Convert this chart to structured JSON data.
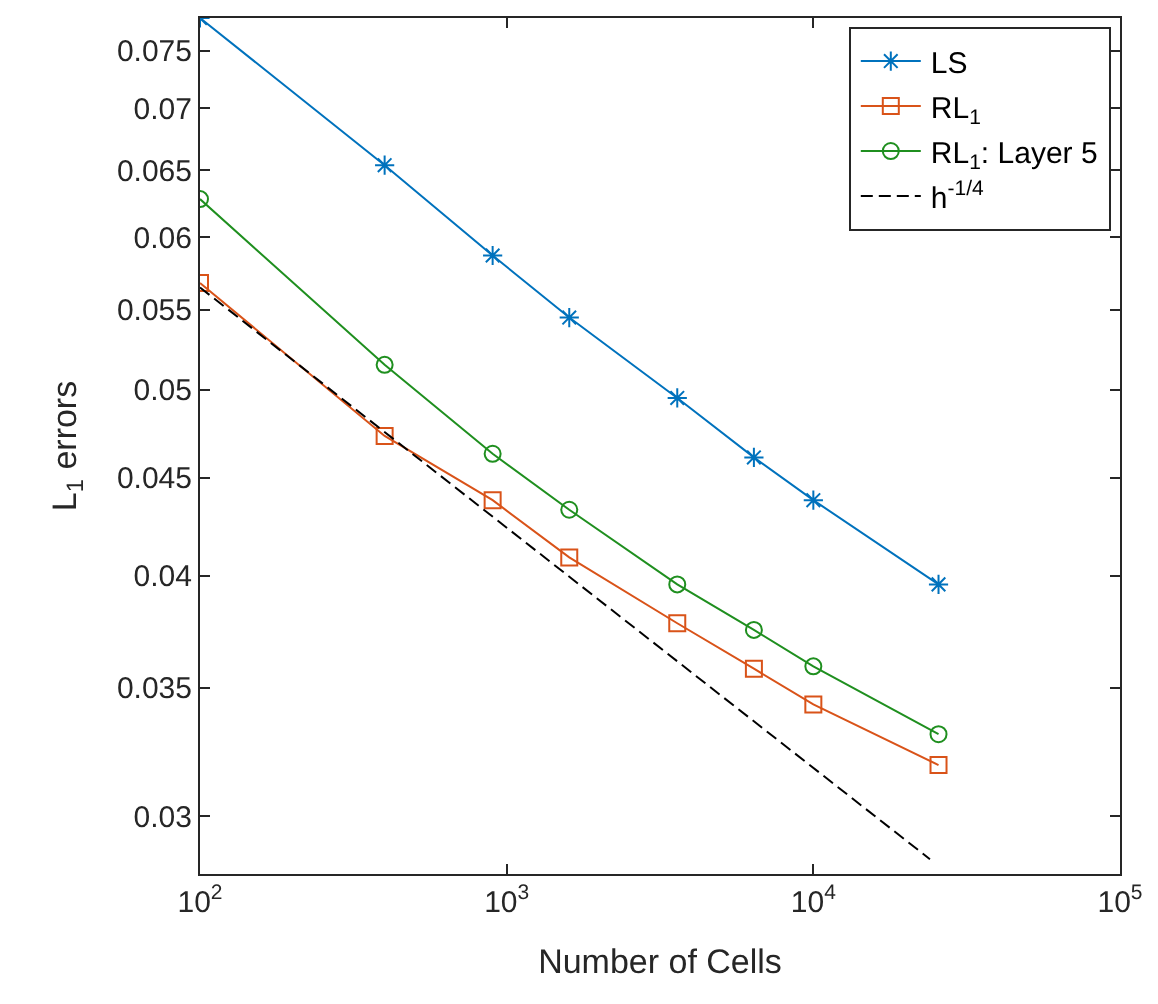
{
  "chart_data": {
    "type": "line",
    "xlabel": "Number of Cells",
    "ylabel": "L$_{1}$ errors",
    "log": "xy",
    "legend": "top right",
    "xlim": [
      100,
      100000
    ],
    "xticks": [
      {
        "value": 100,
        "label": "10$^{2}$"
      },
      {
        "value": 1000,
        "label": "10$^{3}$"
      },
      {
        "value": 10000,
        "label": "10$^{4}$"
      },
      {
        "value": 100000,
        "label": "10$^{5}$"
      }
    ],
    "ylim": [
      0.028,
      0.078
    ],
    "yticks": [
      0.03,
      0.035,
      0.04,
      0.045,
      0.05,
      0.055,
      0.06,
      0.065,
      0.07,
      0.075
    ],
    "x": [
      100,
      400,
      900,
      1600,
      3600,
      6400,
      10000,
      25600
    ],
    "series": [
      {
        "name": "LS",
        "color": "#0072bd",
        "marker": "cross",
        "line_style": "solid",
        "values": [
          0.078,
          0.0654,
          0.0587,
          0.0545,
          0.0495,
          0.0461,
          0.0438,
          0.0396
        ]
      },
      {
        "name": "RL$_{1}$",
        "color": "#d95319",
        "marker": "square",
        "line_style": "solid",
        "values": [
          0.0568,
          0.0473,
          0.0438,
          0.0409,
          0.0378,
          0.0358,
          0.0343,
          0.0319
        ]
      },
      {
        "name": "RL$_{1}$: Layer 5",
        "color": "#1f8f1f",
        "marker": "circle",
        "line_style": "solid",
        "values": [
          0.0628,
          0.0515,
          0.0463,
          0.0433,
          0.0396,
          0.0375,
          0.0359,
          0.0331
        ]
      },
      {
        "name": "h$^{-1/4}$",
        "color": "#000000",
        "marker": "none",
        "line_style": "dashed",
        "x": [
          100,
          24000
        ],
        "values": [
          0.0565,
          0.0285
        ]
      }
    ]
  }
}
